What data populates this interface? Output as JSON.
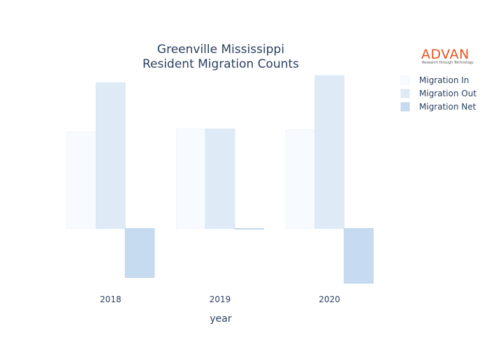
{
  "logo": {
    "name": "ADVAN",
    "tagline": "Research through Technology"
  },
  "chart_data": {
    "type": "bar",
    "title_lines": [
      "Greenville Mississippi",
      "Resident Migration Counts"
    ],
    "xlabel": "year",
    "ylabel": "",
    "categories": [
      "2018",
      "2019",
      "2020"
    ],
    "series": [
      {
        "name": "Migration In",
        "values": [
          134,
          138,
          137
        ],
        "color": "#f7fbff",
        "stroke": "#eef3f9"
      },
      {
        "name": "Migration Out",
        "values": [
          202,
          138,
          212
        ],
        "color": "#deebf7",
        "stroke": "#d4e3f3"
      },
      {
        "name": "Migration Net",
        "values": [
          -68,
          -1,
          -76
        ],
        "color": "#c6dbef",
        "stroke": "#b8d1ea"
      }
    ],
    "ylim": [
      -80,
      220
    ],
    "grid": false,
    "legend_position": "top-right"
  }
}
